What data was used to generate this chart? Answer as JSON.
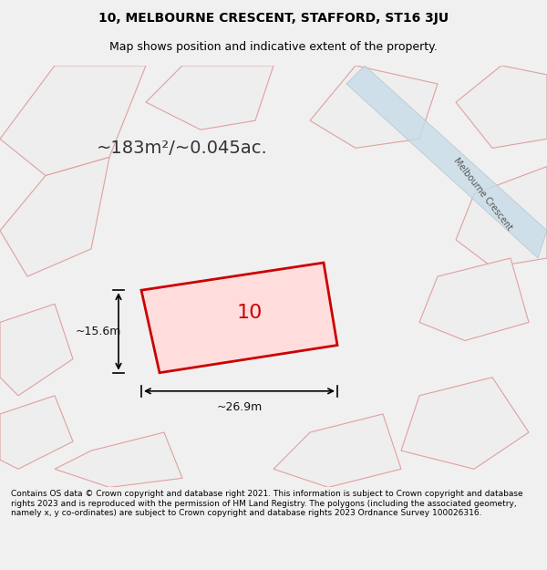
{
  "title_line1": "10, MELBOURNE CRESCENT, STAFFORD, ST16 3JU",
  "title_line2": "Map shows position and indicative extent of the property.",
  "area_text": "~183m²/~0.045ac.",
  "property_number": "10",
  "dim_width": "~26.9m",
  "dim_height": "~15.6m",
  "footer_text": "Contains OS data © Crown copyright and database right 2021. This information is subject to Crown copyright and database rights 2023 and is reproduced with the permission of HM Land Registry. The polygons (including the associated geometry, namely x, y co-ordinates) are subject to Crown copyright and database rights 2023 Ordnance Survey 100026316.",
  "bg_color": "#f0f0f0",
  "map_bg": "#f5f5f5",
  "highlight_color": "#cc0000",
  "other_poly_color": "#e8c8c8",
  "road_color": "#d4e8f0",
  "road_stroke": "#b0ccd8",
  "title_fontsize": 10,
  "subtitle_fontsize": 9,
  "footer_fontsize": 6.5
}
